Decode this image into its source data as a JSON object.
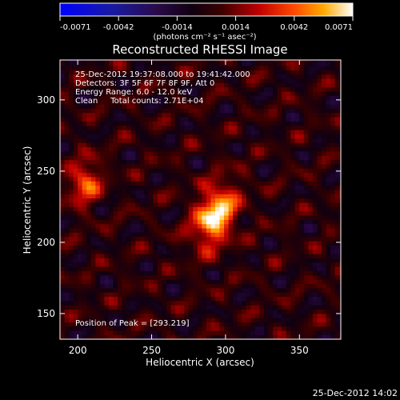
{
  "colorbar": {
    "tick_labels": [
      "-0.0071",
      "-0.0042",
      "-0.0014",
      "0.0014",
      "0.0042",
      "0.0071"
    ],
    "unit_label": "(photons cm⁻² s⁻¹ asec⁻²)"
  },
  "info": {
    "line1": "25-Dec-2012 19:37:08.000 to 19:41:42.000",
    "line2": "Detectors: 3F 5F 6F 7F 8F 9F, Att 0",
    "line3": "Energy Range: 6.0 - 12.0 keV",
    "line4": "Clean     Total counts: 2.71E+04",
    "peak": "Position of Peak = [293.219]"
  },
  "footer": {
    "timestamp": "25-Dec-2012 14:02"
  },
  "colors": {
    "text": "#ffffff",
    "background": "#000000",
    "axes": "#ffffff"
  },
  "chart_data": {
    "type": "heatmap",
    "title": "Reconstructed RHESSI Image",
    "xlabel": "Heliocentric X (arcsec)",
    "ylabel": "Heliocentric Y (arcsec)",
    "xlim": [
      188,
      378
    ],
    "ylim": [
      132,
      328
    ],
    "xticks": [
      200,
      250,
      300,
      350
    ],
    "yticks": [
      150,
      200,
      250,
      300
    ],
    "colorbar_range": [
      -0.0071,
      0.0071
    ],
    "colormap": "black-red-yellow-white (negative: blue-purple)",
    "sources": [
      {
        "x": 293,
        "y": 219,
        "peak": 0.0071
      },
      {
        "x": 205,
        "y": 242,
        "peak": 0.0045
      }
    ],
    "peak_position": [
      293,
      219
    ]
  }
}
